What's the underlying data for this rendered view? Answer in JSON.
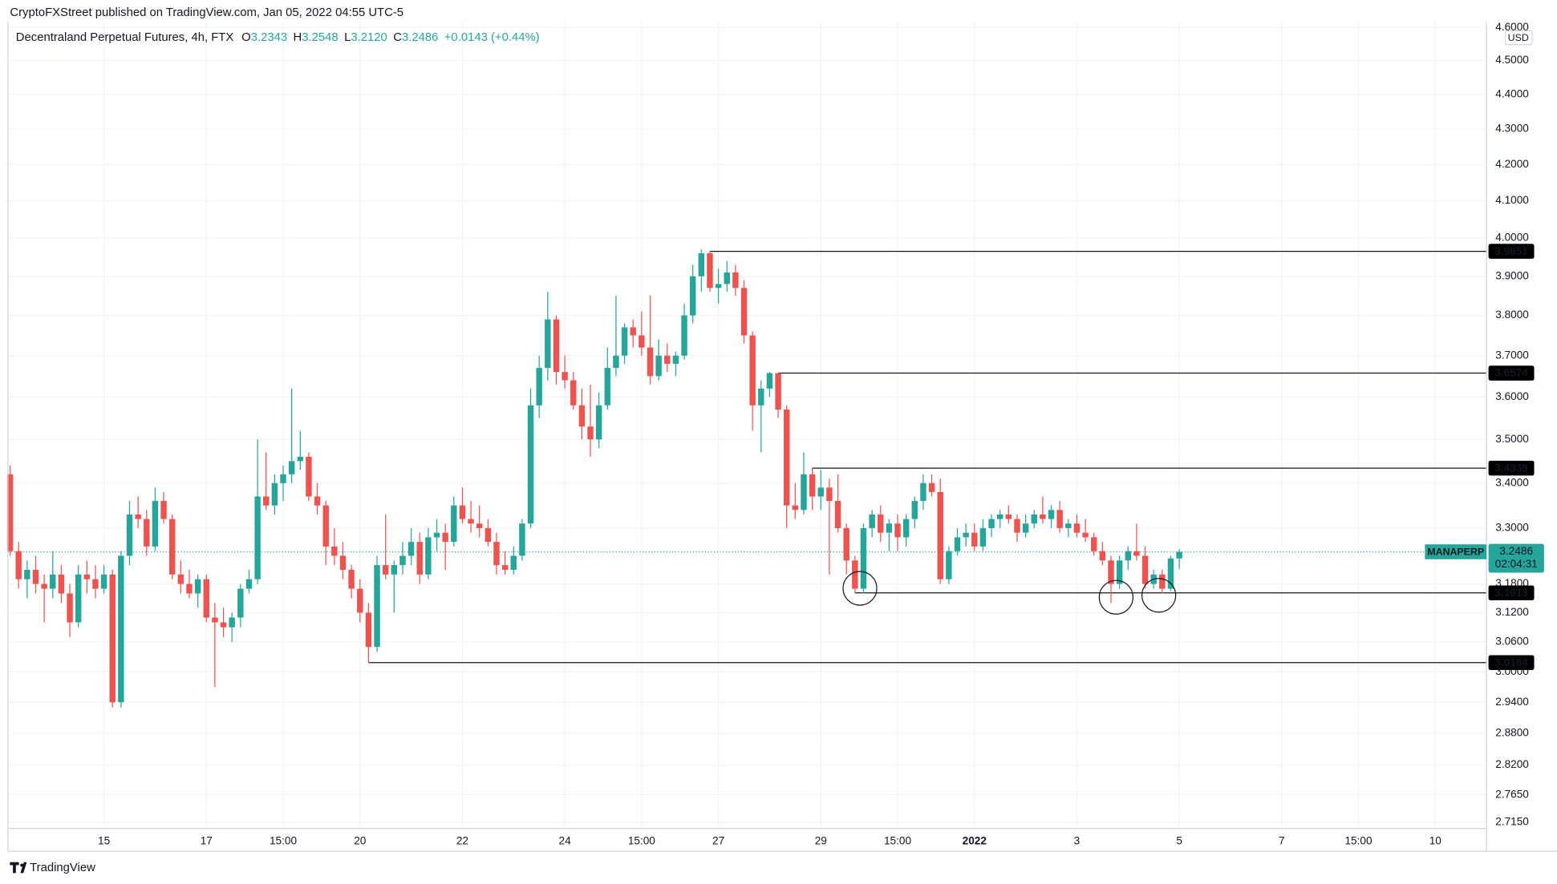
{
  "header": "CryptoFXStreet published on TradingView.com, Jan 05, 2022 04:55 UTC-5",
  "legend": {
    "title": "Decentraland Perpetual Futures, 4h, FTX",
    "items": [
      {
        "key": "O",
        "value": "3.2343"
      },
      {
        "key": "H",
        "value": "3.2548"
      },
      {
        "key": "L",
        "value": "3.2120"
      },
      {
        "key": "C",
        "value": "3.2486"
      }
    ],
    "change": "+0.0143 (+0.44%)"
  },
  "currency": "USD",
  "symbol": "MANAPERP",
  "countdown": "02:04:31",
  "brand": "TradingView",
  "chart_data": {
    "type": "candlestick",
    "up_color": "#26a69a",
    "down_color": "#ef5350",
    "yscale": "log",
    "grid": true,
    "xlim": [
      -0.25,
      173
    ],
    "ylim": [
      2.704,
      4.617
    ],
    "xticks": [
      {
        "value": 11,
        "label": "15"
      },
      {
        "value": 23,
        "label": "17"
      },
      {
        "value": 32,
        "label": "15:00"
      },
      {
        "value": 41,
        "label": "20"
      },
      {
        "value": 53,
        "label": "22"
      },
      {
        "value": 65,
        "label": "24"
      },
      {
        "value": 74,
        "label": "15:00"
      },
      {
        "value": 83,
        "label": "27"
      },
      {
        "value": 95,
        "label": "29"
      },
      {
        "value": 104,
        "label": "15:00"
      },
      {
        "value": 113,
        "label": "2022"
      },
      {
        "value": 125,
        "label": "3"
      },
      {
        "value": 137,
        "label": "5"
      },
      {
        "value": 149,
        "label": "7"
      },
      {
        "value": 158,
        "label": "15:00"
      },
      {
        "value": 167,
        "label": "10"
      }
    ],
    "yticks": [
      {
        "value": 2.715,
        "label": "2.7150"
      },
      {
        "value": 2.765,
        "label": "2.7650"
      },
      {
        "value": 2.82,
        "label": "2.8200"
      },
      {
        "value": 2.88,
        "label": "2.8800"
      },
      {
        "value": 2.94,
        "label": "2.9400"
      },
      {
        "value": 3,
        "label": "3.0000"
      },
      {
        "value": 3.06,
        "label": "3.0600"
      },
      {
        "value": 3.12,
        "label": "3.1200"
      },
      {
        "value": 3.18,
        "label": "3.1800"
      },
      {
        "value": 3.3,
        "label": "3.3000"
      },
      {
        "value": 3.4,
        "label": "3.4000"
      },
      {
        "value": 3.5,
        "label": "3.5000"
      },
      {
        "value": 3.6,
        "label": "3.6000"
      },
      {
        "value": 3.7,
        "label": "3.7000"
      },
      {
        "value": 3.8,
        "label": "3.8000"
      },
      {
        "value": 3.9,
        "label": "3.9000"
      },
      {
        "value": 4,
        "label": "4.0000"
      },
      {
        "value": 4.1,
        "label": "4.1000"
      },
      {
        "value": 4.2,
        "label": "4.2000"
      },
      {
        "value": 4.3,
        "label": "4.3000"
      },
      {
        "value": 4.4,
        "label": "4.4000"
      },
      {
        "value": 4.5,
        "label": "4.5000"
      },
      {
        "value": 4.6,
        "label": "4.6000"
      }
    ],
    "levels": [
      {
        "value": 3.9651,
        "label": "3.9651"
      },
      {
        "value": 3.6574,
        "label": "3.6574"
      },
      {
        "value": 3.4339,
        "label": "3.4339"
      },
      {
        "value": 3.1613,
        "label": "3.1613"
      },
      {
        "value": 3.0184,
        "label": "3.0184"
      }
    ],
    "ohlc": [
      [
        3.42,
        3.44,
        3.24,
        3.25
      ],
      [
        3.25,
        3.27,
        3.17,
        3.19
      ],
      [
        3.19,
        3.23,
        3.15,
        3.21
      ],
      [
        3.21,
        3.24,
        3.16,
        3.18
      ],
      [
        3.18,
        3.2,
        3.1,
        3.17
      ],
      [
        3.17,
        3.25,
        3.15,
        3.2
      ],
      [
        3.2,
        3.22,
        3.14,
        3.16
      ],
      [
        3.16,
        3.18,
        3.07,
        3.1
      ],
      [
        3.1,
        3.22,
        3.09,
        3.2
      ],
      [
        3.2,
        3.23,
        3.16,
        3.19
      ],
      [
        3.19,
        3.22,
        3.15,
        3.17
      ],
      [
        3.17,
        3.22,
        3.16,
        3.2
      ],
      [
        3.2,
        3.21,
        2.93,
        2.94
      ],
      [
        2.94,
        3.25,
        2.93,
        3.24
      ],
      [
        3.24,
        3.36,
        3.22,
        3.33
      ],
      [
        3.33,
        3.37,
        3.3,
        3.32
      ],
      [
        3.32,
        3.34,
        3.24,
        3.26
      ],
      [
        3.26,
        3.39,
        3.25,
        3.36
      ],
      [
        3.36,
        3.38,
        3.31,
        3.32
      ],
      [
        3.32,
        3.33,
        3.19,
        3.2
      ],
      [
        3.2,
        3.23,
        3.16,
        3.18
      ],
      [
        3.18,
        3.21,
        3.15,
        3.16
      ],
      [
        3.16,
        3.2,
        3.13,
        3.19
      ],
      [
        3.19,
        3.2,
        3.1,
        3.11
      ],
      [
        3.11,
        3.14,
        2.97,
        3.1
      ],
      [
        3.1,
        3.13,
        3.07,
        3.09
      ],
      [
        3.09,
        3.12,
        3.06,
        3.11
      ],
      [
        3.11,
        3.18,
        3.09,
        3.17
      ],
      [
        3.17,
        3.21,
        3.16,
        3.19
      ],
      [
        3.19,
        3.5,
        3.18,
        3.37
      ],
      [
        3.37,
        3.47,
        3.34,
        3.35
      ],
      [
        3.35,
        3.42,
        3.33,
        3.4
      ],
      [
        3.4,
        3.44,
        3.36,
        3.42
      ],
      [
        3.42,
        3.62,
        3.4,
        3.45
      ],
      [
        3.45,
        3.52,
        3.43,
        3.46
      ],
      [
        3.46,
        3.47,
        3.36,
        3.37
      ],
      [
        3.37,
        3.4,
        3.33,
        3.35
      ],
      [
        3.35,
        3.36,
        3.22,
        3.26
      ],
      [
        3.26,
        3.3,
        3.22,
        3.24
      ],
      [
        3.24,
        3.27,
        3.19,
        3.21
      ],
      [
        3.21,
        3.22,
        3.15,
        3.17
      ],
      [
        3.17,
        3.19,
        3.1,
        3.12
      ],
      [
        3.12,
        3.14,
        3.0184,
        3.05
      ],
      [
        3.05,
        3.24,
        3.04,
        3.22
      ],
      [
        3.22,
        3.33,
        3.19,
        3.2
      ],
      [
        3.2,
        3.23,
        3.12,
        3.22
      ],
      [
        3.22,
        3.27,
        3.2,
        3.24
      ],
      [
        3.24,
        3.3,
        3.22,
        3.27
      ],
      [
        3.27,
        3.29,
        3.18,
        3.2
      ],
      [
        3.2,
        3.3,
        3.19,
        3.28
      ],
      [
        3.28,
        3.32,
        3.25,
        3.29
      ],
      [
        3.29,
        3.31,
        3.21,
        3.27
      ],
      [
        3.27,
        3.37,
        3.26,
        3.35
      ],
      [
        3.35,
        3.39,
        3.31,
        3.32
      ],
      [
        3.32,
        3.36,
        3.29,
        3.31
      ],
      [
        3.31,
        3.35,
        3.28,
        3.3
      ],
      [
        3.3,
        3.32,
        3.26,
        3.27
      ],
      [
        3.27,
        3.29,
        3.2,
        3.22
      ],
      [
        3.22,
        3.25,
        3.2,
        3.21
      ],
      [
        3.21,
        3.26,
        3.2,
        3.24
      ],
      [
        3.24,
        3.32,
        3.23,
        3.31
      ],
      [
        3.31,
        3.62,
        3.3,
        3.58
      ],
      [
        3.58,
        3.7,
        3.55,
        3.67
      ],
      [
        3.67,
        3.86,
        3.64,
        3.79
      ],
      [
        3.79,
        3.8,
        3.63,
        3.66
      ],
      [
        3.66,
        3.7,
        3.62,
        3.64
      ],
      [
        3.64,
        3.66,
        3.57,
        3.58
      ],
      [
        3.58,
        3.62,
        3.5,
        3.53
      ],
      [
        3.53,
        3.63,
        3.46,
        3.5
      ],
      [
        3.5,
        3.61,
        3.48,
        3.58
      ],
      [
        3.58,
        3.72,
        3.57,
        3.67
      ],
      [
        3.67,
        3.85,
        3.65,
        3.7
      ],
      [
        3.7,
        3.78,
        3.68,
        3.77
      ],
      [
        3.77,
        3.79,
        3.72,
        3.75
      ],
      [
        3.75,
        3.81,
        3.7,
        3.72
      ],
      [
        3.72,
        3.85,
        3.63,
        3.65
      ],
      [
        3.65,
        3.74,
        3.64,
        3.7
      ],
      [
        3.7,
        3.73,
        3.66,
        3.68
      ],
      [
        3.68,
        3.71,
        3.65,
        3.7
      ],
      [
        3.7,
        3.83,
        3.69,
        3.8
      ],
      [
        3.8,
        3.93,
        3.78,
        3.9
      ],
      [
        3.9,
        3.97,
        3.86,
        3.96
      ],
      [
        3.96,
        3.9651,
        3.86,
        3.87
      ],
      [
        3.87,
        3.92,
        3.83,
        3.88
      ],
      [
        3.88,
        3.94,
        3.86,
        3.91
      ],
      [
        3.91,
        3.93,
        3.85,
        3.87
      ],
      [
        3.87,
        3.89,
        3.73,
        3.75
      ],
      [
        3.75,
        3.76,
        3.52,
        3.58
      ],
      [
        3.58,
        3.64,
        3.47,
        3.62
      ],
      [
        3.62,
        3.66,
        3.6,
        3.6574
      ],
      [
        3.6574,
        3.6574,
        3.55,
        3.57
      ],
      [
        3.57,
        3.58,
        3.3,
        3.35
      ],
      [
        3.35,
        3.4,
        3.32,
        3.34
      ],
      [
        3.34,
        3.47,
        3.33,
        3.42
      ],
      [
        3.42,
        3.4339,
        3.34,
        3.37
      ],
      [
        3.37,
        3.43,
        3.34,
        3.39
      ],
      [
        3.39,
        3.41,
        3.2,
        3.36
      ],
      [
        3.36,
        3.42,
        3.29,
        3.3
      ],
      [
        3.3,
        3.31,
        3.2,
        3.23
      ],
      [
        3.23,
        3.24,
        3.1613,
        3.17
      ],
      [
        3.17,
        3.31,
        3.16,
        3.3
      ],
      [
        3.3,
        3.34,
        3.28,
        3.33
      ],
      [
        3.33,
        3.35,
        3.27,
        3.29
      ],
      [
        3.29,
        3.32,
        3.25,
        3.31
      ],
      [
        3.31,
        3.33,
        3.25,
        3.28
      ],
      [
        3.28,
        3.33,
        3.26,
        3.32
      ],
      [
        3.32,
        3.37,
        3.3,
        3.36
      ],
      [
        3.36,
        3.42,
        3.34,
        3.4
      ],
      [
        3.4,
        3.42,
        3.37,
        3.38
      ],
      [
        3.38,
        3.41,
        3.18,
        3.19
      ],
      [
        3.19,
        3.26,
        3.18,
        3.25
      ],
      [
        3.25,
        3.3,
        3.24,
        3.28
      ],
      [
        3.28,
        3.31,
        3.26,
        3.29
      ],
      [
        3.29,
        3.31,
        3.25,
        3.26
      ],
      [
        3.26,
        3.32,
        3.25,
        3.3
      ],
      [
        3.3,
        3.33,
        3.28,
        3.32
      ],
      [
        3.32,
        3.34,
        3.3,
        3.33
      ],
      [
        3.33,
        3.35,
        3.31,
        3.32
      ],
      [
        3.32,
        3.33,
        3.27,
        3.29
      ],
      [
        3.29,
        3.33,
        3.28,
        3.31
      ],
      [
        3.31,
        3.34,
        3.3,
        3.33
      ],
      [
        3.33,
        3.37,
        3.31,
        3.32
      ],
      [
        3.32,
        3.35,
        3.3,
        3.34
      ],
      [
        3.34,
        3.36,
        3.29,
        3.3
      ],
      [
        3.3,
        3.32,
        3.28,
        3.31
      ],
      [
        3.31,
        3.33,
        3.28,
        3.29
      ],
      [
        3.29,
        3.32,
        3.27,
        3.28
      ],
      [
        3.28,
        3.29,
        3.24,
        3.25
      ],
      [
        3.25,
        3.27,
        3.22,
        3.23
      ],
      [
        3.23,
        3.24,
        3.14,
        3.18
      ],
      [
        3.18,
        3.24,
        3.17,
        3.23
      ],
      [
        3.23,
        3.26,
        3.21,
        3.25
      ],
      [
        3.25,
        3.31,
        3.23,
        3.24
      ],
      [
        3.24,
        3.26,
        3.17,
        3.18
      ],
      [
        3.18,
        3.21,
        3.17,
        3.2
      ],
      [
        3.2,
        3.21,
        3.16,
        3.17
      ],
      [
        3.17,
        3.24,
        3.165,
        3.2343
      ],
      [
        3.2343,
        3.2548,
        3.212,
        3.2486
      ]
    ]
  }
}
